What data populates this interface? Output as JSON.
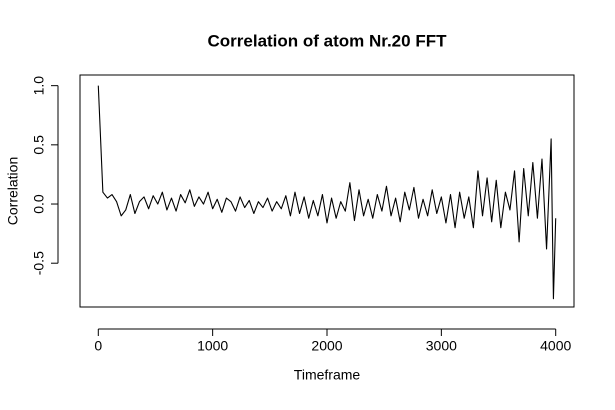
{
  "chart_data": {
    "type": "line",
    "title": "Correlation of atom Nr.20 FFT",
    "x_label": "Timeframe",
    "y_label": "Correlation",
    "x": [
      0,
      40,
      80,
      120,
      160,
      200,
      240,
      280,
      320,
      360,
      400,
      440,
      480,
      520,
      560,
      600,
      640,
      680,
      720,
      760,
      800,
      840,
      880,
      920,
      960,
      1000,
      1040,
      1080,
      1120,
      1160,
      1200,
      1240,
      1280,
      1320,
      1360,
      1400,
      1440,
      1480,
      1520,
      1560,
      1600,
      1640,
      1680,
      1720,
      1760,
      1800,
      1840,
      1880,
      1920,
      1960,
      2000,
      2040,
      2080,
      2120,
      2160,
      2200,
      2240,
      2280,
      2320,
      2360,
      2400,
      2440,
      2480,
      2520,
      2560,
      2600,
      2640,
      2680,
      2720,
      2760,
      2800,
      2840,
      2880,
      2920,
      2960,
      3000,
      3040,
      3080,
      3120,
      3160,
      3200,
      3240,
      3280,
      3320,
      3360,
      3400,
      3440,
      3480,
      3520,
      3560,
      3600,
      3640,
      3680,
      3720,
      3760,
      3800,
      3840,
      3880,
      3920,
      3960,
      3980,
      4000
    ],
    "series": [
      {
        "name": "Correlation",
        "color": "#000000",
        "values": [
          1.0,
          0.1,
          0.05,
          0.08,
          0.02,
          -0.1,
          -0.05,
          0.08,
          -0.08,
          0.02,
          0.06,
          -0.04,
          0.07,
          0.0,
          0.1,
          -0.05,
          0.05,
          -0.06,
          0.08,
          0.01,
          0.12,
          -0.02,
          0.06,
          0.0,
          0.1,
          -0.04,
          0.04,
          -0.07,
          0.05,
          0.02,
          -0.06,
          0.06,
          -0.03,
          0.03,
          -0.08,
          0.02,
          -0.03,
          0.05,
          -0.06,
          0.02,
          -0.04,
          0.07,
          -0.1,
          0.1,
          -0.08,
          0.06,
          -0.12,
          0.03,
          -0.1,
          0.08,
          -0.16,
          0.05,
          -0.12,
          0.02,
          -0.06,
          0.18,
          -0.14,
          0.12,
          -0.1,
          0.04,
          -0.12,
          0.08,
          -0.06,
          0.15,
          -0.1,
          0.05,
          -0.15,
          0.1,
          -0.05,
          0.14,
          -0.12,
          0.04,
          -0.1,
          0.12,
          -0.08,
          0.06,
          -0.16,
          0.08,
          -0.2,
          0.1,
          -0.12,
          0.06,
          -0.2,
          0.28,
          -0.1,
          0.22,
          -0.15,
          0.2,
          -0.2,
          0.1,
          -0.05,
          0.28,
          -0.32,
          0.3,
          -0.1,
          0.35,
          -0.12,
          0.38,
          -0.38,
          0.55,
          -0.8,
          -0.12
        ]
      }
    ],
    "xlim": [
      -160,
      4160
    ],
    "ylim": [
      -0.87,
      1.09
    ],
    "xticks": [
      0,
      1000,
      2000,
      3000,
      4000
    ],
    "yticks": [
      -0.5,
      {
        "value": 0,
        "label": "0.0"
      },
      0.5,
      {
        "value": 1,
        "label": "1.0"
      }
    ]
  }
}
